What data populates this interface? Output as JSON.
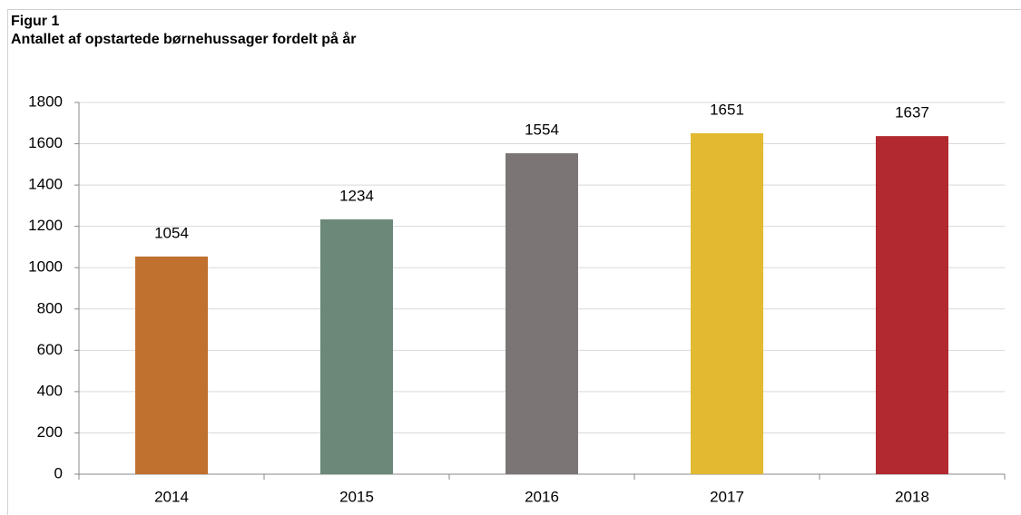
{
  "chart_data": {
    "type": "bar",
    "title": "Figur 1",
    "subtitle": "Antallet af opstartede børnehussager fordelt på år",
    "categories": [
      "2014",
      "2015",
      "2016",
      "2017",
      "2018"
    ],
    "values": [
      1054,
      1234,
      1554,
      1651,
      1637
    ],
    "colors": [
      "#c0712f",
      "#6b8878",
      "#7b7575",
      "#e2b930",
      "#b22a30"
    ],
    "ylim": [
      0,
      1800
    ],
    "yticks": [
      0,
      200,
      400,
      600,
      800,
      1000,
      1200,
      1400,
      1600,
      1800
    ],
    "grid": true
  }
}
